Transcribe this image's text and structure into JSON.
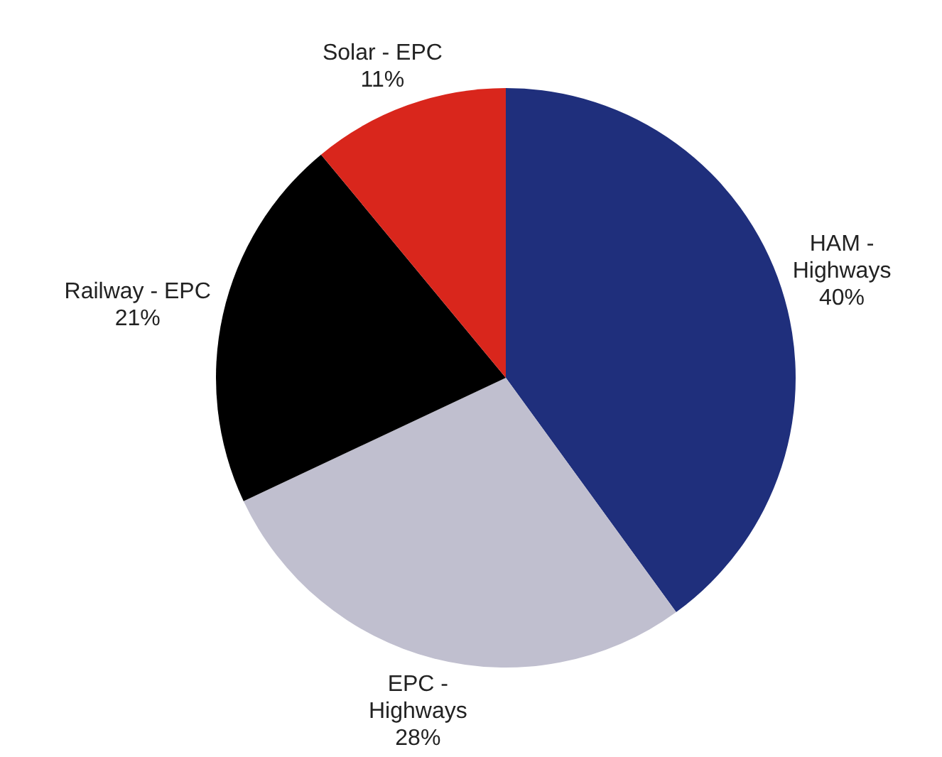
{
  "chart_data": {
    "type": "pie",
    "categories": [
      "HAM - Highways",
      "EPC - Highways",
      "Railway - EPC",
      "Solar - EPC"
    ],
    "values": [
      40,
      28,
      21,
      11
    ],
    "colors": [
      "#1f2f7c",
      "#c0bfcf",
      "#000000",
      "#d9261c"
    ],
    "value_labels": [
      "40%",
      "28%",
      "21%",
      "11%"
    ]
  }
}
